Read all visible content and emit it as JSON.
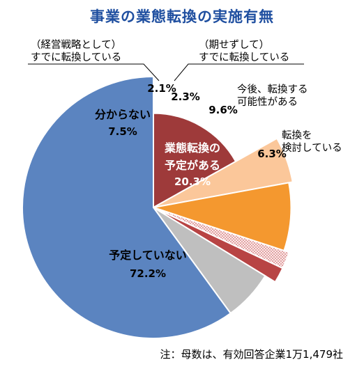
{
  "chart_data": {
    "type": "pie",
    "title": "事業の業態転換の実施有無",
    "note": "注：母数は、有効回答企業1万1,479社",
    "slices": [
      {
        "label": "業態転換の予定がある",
        "value": 20.3,
        "value_label": "20.3%",
        "color": "#9e3a3a",
        "label_color": "#ffffff"
      },
      {
        "label": "転換を検討している",
        "value": 6.3,
        "value_label": "6.3%",
        "color": "#fbc79a",
        "label_color": "#000000"
      },
      {
        "label": "今後、転換する可能性がある",
        "value": 9.6,
        "value_label": "9.6%",
        "color": "#f4982f",
        "label_color": "#000000"
      },
      {
        "label": "（期せずして）すでに転換している",
        "value": 2.3,
        "value_label": "2.3%",
        "color": "#f3d9d9",
        "label_color": "#000000"
      },
      {
        "label": "（経営戦略として）すでに転換している",
        "value": 2.1,
        "value_label": "2.1%",
        "color": "#b84444",
        "label_color": "#000000"
      },
      {
        "label": "分からない",
        "value": 7.5,
        "value_label": "7.5%",
        "color": "#bfbfbf",
        "label_color": "#000000"
      },
      {
        "label": "予定していない",
        "value": 72.2,
        "value_label": "72.2%",
        "color": "#5b84c0",
        "label_color": "#000000"
      }
    ],
    "inside_labels": [
      {
        "lines": [
          "業態転換の",
          "予定がある"
        ]
      },
      {
        "lines": [
          "分からない"
        ]
      },
      {
        "lines": [
          "予定していない"
        ]
      }
    ],
    "callouts": [
      {
        "lines": [
          "（経営戦略として）",
          "すでに転換している"
        ]
      },
      {
        "lines": [
          "（期せずして）",
          "すでに転換している"
        ]
      },
      {
        "lines": [
          "今後、転換する",
          "可能性がある"
        ]
      },
      {
        "lines": [
          "転換を",
          "検討している"
        ]
      }
    ],
    "legend": "none"
  }
}
